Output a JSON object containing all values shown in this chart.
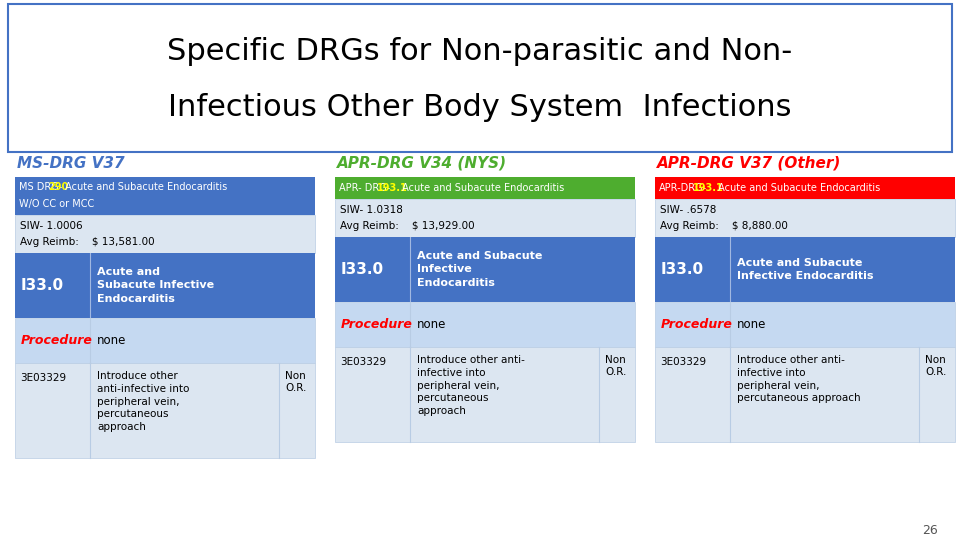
{
  "title_line1": "Specific DRGs for Non-parasitic and Non-",
  "title_line2": "Infectious Other Body System  Infections",
  "bg_color": "#ffffff",
  "slide_border_color": "#4472c4",
  "title_color": "#000000",
  "page_number": "26",
  "columns": [
    {
      "header": "MS-DRG V37",
      "header_color": "#4472c4",
      "drg_label": "MS DRG-",
      "drg_number": "290",
      "drg_number_color": "#ffff00",
      "drg_desc_line1": " Acute and Subacute Endocarditis",
      "drg_desc_line2": "W/O CC or MCC",
      "drg_bar_color": "#4472c4",
      "drg_two_lines": true,
      "siw": "SIW- 1.0006",
      "avg_reimb": "Avg Reimb:    $ 13,581.00",
      "icd_code": "I33.0",
      "icd_desc": "Acute and\nSubacute Infective\nEndocarditis",
      "icd_bar_color": "#4472c4",
      "proc_label": "Procedure",
      "proc_label_color": "#ff0000",
      "proc_value": "none",
      "proc_bar_color": "#c5d9f1",
      "code2": "3E03329",
      "code2_desc": "Introduce other\nanti-infective into\nperipheral vein,\npercutaneous\napproach",
      "code2_extra": "Non\nO.R.",
      "code2_bar_color": "#dce6f1"
    },
    {
      "header": "APR-DRG V34 (NYS)",
      "header_color": "#4ead2f",
      "drg_label": "APR- DRG-",
      "drg_number": "193.1",
      "drg_number_color": "#ffff00",
      "drg_desc_line1": " Acute and Subacute Endocarditis",
      "drg_desc_line2": "",
      "drg_bar_color": "#4ead2f",
      "drg_two_lines": false,
      "siw": "SIW- 1.0318",
      "avg_reimb": "Avg Reimb:    $ 13,929.00",
      "icd_code": "I33.0",
      "icd_desc": "Acute and Subacute\nInfective\nEndocarditis",
      "icd_bar_color": "#4472c4",
      "proc_label": "Procedure",
      "proc_label_color": "#ff0000",
      "proc_value": "none",
      "proc_bar_color": "#c5d9f1",
      "code2": "3E03329",
      "code2_desc": "Introduce other anti-\ninfective into\nperipheral vein,\npercutaneous\napproach",
      "code2_extra": "Non\nO.R.",
      "code2_bar_color": "#dce6f1"
    },
    {
      "header": "APR-DRG V37 (Other)",
      "header_color": "#ff0000",
      "drg_label": "APR-DRG-",
      "drg_number": "193.1",
      "drg_number_color": "#ffff00",
      "drg_desc_line1": " Acute and Subacute Endocarditis",
      "drg_desc_line2": "",
      "drg_bar_color": "#ff0000",
      "drg_two_lines": false,
      "siw": "SIW- .6578",
      "avg_reimb": "Avg Reimb:    $ 8,880.00",
      "icd_code": "I33.0",
      "icd_desc": "Acute and Subacute\nInfective Endocarditis",
      "icd_bar_color": "#4472c4",
      "proc_label": "Procedure",
      "proc_label_color": "#ff0000",
      "proc_value": "none",
      "proc_bar_color": "#c5d9f1",
      "code2": "3E03329",
      "code2_desc": "Introduce other anti-\ninfective into\nperipheral vein,\npercutaneous approach",
      "code2_extra": "Non\nO.R.",
      "code2_bar_color": "#dce6f1"
    }
  ]
}
